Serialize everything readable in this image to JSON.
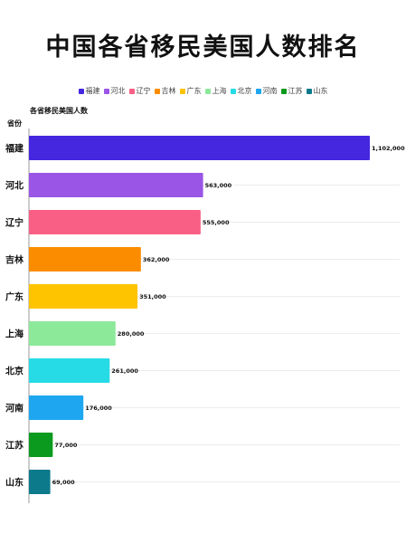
{
  "chart_data": {
    "type": "bar",
    "orientation": "horizontal",
    "title": "中国各省移民美国人数排名",
    "subtitle": "各省移民美国人数",
    "ylabel": "省份",
    "categories": [
      "福建",
      "河北",
      "辽宁",
      "吉林",
      "广东",
      "上海",
      "北京",
      "河南",
      "江苏",
      "山东"
    ],
    "values": [
      1102000,
      563000,
      555000,
      362000,
      351000,
      280000,
      261000,
      176000,
      77000,
      69000
    ],
    "value_labels": [
      "1,102,000",
      "563,000",
      "555,000",
      "362,000",
      "351,000",
      "280,000",
      "261,000",
      "176,000",
      "77,000",
      "69,000"
    ],
    "colors": [
      "#4527e0",
      "#9a55e6",
      "#f95f84",
      "#fb8c00",
      "#ffc400",
      "#8ce99a",
      "#26dbe6",
      "#1ea7f0",
      "#0b9a1e",
      "#0d7a8c"
    ],
    "xlim": [
      0,
      1102000
    ],
    "grid": true,
    "legend": {
      "placement": "top-center",
      "entries": [
        "福建",
        "河北",
        "辽宁",
        "吉林",
        "广东",
        "上海",
        "北京",
        "河南",
        "江苏",
        "山东"
      ]
    }
  }
}
